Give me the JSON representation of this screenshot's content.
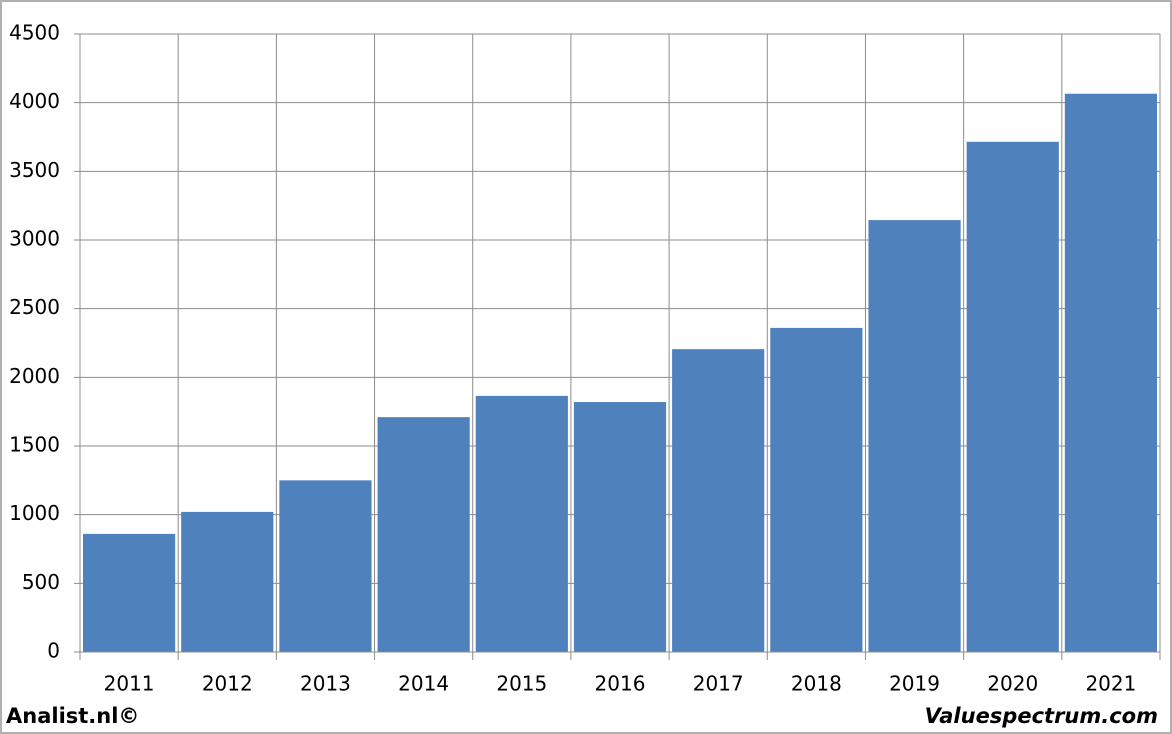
{
  "chart_data": {
    "type": "bar",
    "categories": [
      "2011",
      "2012",
      "2013",
      "2014",
      "2015",
      "2016",
      "2017",
      "2018",
      "2019",
      "2020",
      "2021"
    ],
    "values": [
      860,
      1020,
      1250,
      1710,
      1865,
      1820,
      2205,
      2360,
      3145,
      3715,
      4065
    ],
    "color": "#4f81bd",
    "ylim": [
      0,
      4500
    ],
    "yticks": [
      0,
      500,
      1000,
      1500,
      2000,
      2500,
      3000,
      3500,
      4000,
      4500
    ],
    "grid": true,
    "footer_left": "Analist.nl©",
    "footer_right": "Valuespectrum.com"
  }
}
